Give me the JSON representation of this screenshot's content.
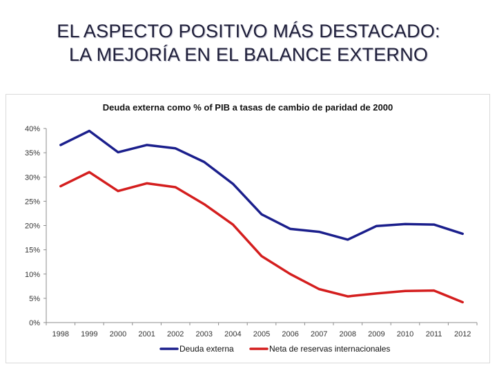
{
  "slide": {
    "title_line1": "EL ASPECTO POSITIVO MÁS DESTACADO:",
    "title_line2": "LA MEJORÍA EN EL BALANCE EXTERNO"
  },
  "chart_data": {
    "type": "line",
    "title": "Deuda externa como % of PIB a tasas de cambio de paridad de 2000",
    "xlabel": "",
    "ylabel": "",
    "ylim": [
      0,
      40
    ],
    "yticks": [
      "0%",
      "5%",
      "10%",
      "15%",
      "20%",
      "25%",
      "30%",
      "35%",
      "40%"
    ],
    "categories": [
      "1998",
      "1999",
      "2000",
      "2001",
      "2002",
      "2003",
      "2004",
      "2005",
      "2006",
      "2007",
      "2008",
      "2009",
      "2010",
      "2011",
      "2012"
    ],
    "series": [
      {
        "name": "Deuda externa",
        "color": "#1b1f8c",
        "values": [
          36.6,
          39.5,
          35.1,
          36.6,
          35.9,
          33.1,
          28.6,
          22.3,
          19.3,
          18.7,
          17.1,
          19.9,
          20.3,
          20.2,
          18.3
        ]
      },
      {
        "name": "Neta de reservas internacionales",
        "color": "#d41e1e",
        "values": [
          28.1,
          31.0,
          27.1,
          28.7,
          27.9,
          24.4,
          20.2,
          13.7,
          10.0,
          6.9,
          5.4,
          6.0,
          6.5,
          6.6,
          4.2
        ]
      }
    ],
    "grid": false,
    "legend_position": "bottom"
  }
}
